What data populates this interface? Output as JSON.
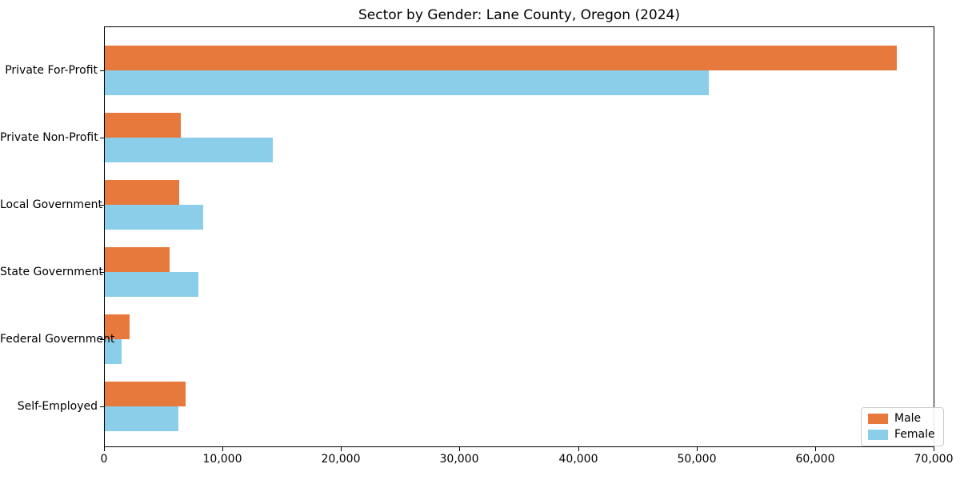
{
  "chart_data": {
    "type": "bar",
    "orientation": "horizontal",
    "title": "Sector by Gender: Lane County, Oregon (2024)",
    "xlabel": "",
    "ylabel": "",
    "categories": [
      "Private For-Profit",
      "Private Non-Profit",
      "Local Government",
      "State Government",
      "Federal Government",
      "Self-Employed"
    ],
    "series": [
      {
        "name": "Male",
        "color": "#e8793d",
        "values": [
          66900,
          6400,
          6300,
          5500,
          2100,
          6800
        ]
      },
      {
        "name": "Female",
        "color": "#8bcee9",
        "values": [
          51000,
          14200,
          8300,
          7900,
          1400,
          6200
        ]
      }
    ],
    "xlim": [
      0,
      70000
    ],
    "x_ticks": [
      0,
      10000,
      20000,
      30000,
      40000,
      50000,
      60000,
      70000
    ],
    "x_tick_labels": [
      "0",
      "10,000",
      "20,000",
      "30,000",
      "40,000",
      "50,000",
      "60,000",
      "70,000"
    ],
    "grid": false,
    "legend": {
      "position": "lower right",
      "entries": [
        "Male",
        "Female"
      ]
    },
    "colors": {
      "spine": "#000000",
      "background": "#ffffff",
      "legend_border": "#cccccc"
    }
  }
}
